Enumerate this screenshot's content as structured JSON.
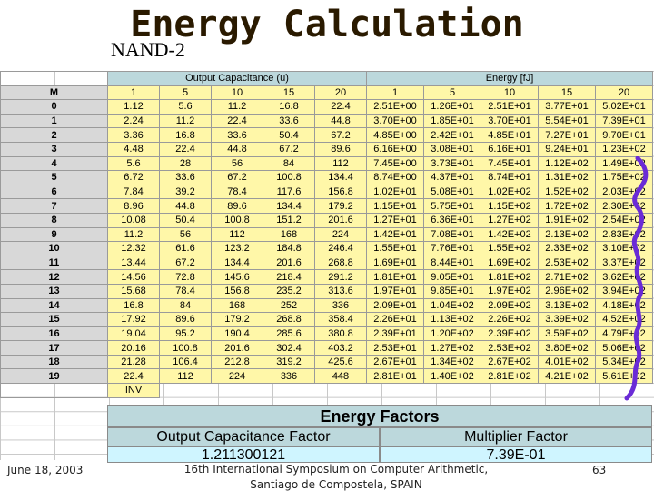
{
  "title": "Energy Calculation",
  "subtitle": "NAND-2",
  "table": {
    "cap_header": "Output Capacitance (u)",
    "energy_header": "Energy [fJ]",
    "m_label": "M",
    "cap_cols": [
      "1",
      "5",
      "10",
      "15",
      "20"
    ],
    "energy_cols": [
      "1",
      "5",
      "10",
      "15",
      "20"
    ],
    "inv_label": "INV",
    "rows": [
      {
        "m": "0",
        "cap": [
          "1.12",
          "5.6",
          "11.2",
          "16.8",
          "22.4"
        ],
        "energy": [
          "2.51E+00",
          "1.26E+01",
          "2.51E+01",
          "3.77E+01",
          "5.02E+01"
        ]
      },
      {
        "m": "1",
        "cap": [
          "2.24",
          "11.2",
          "22.4",
          "33.6",
          "44.8"
        ],
        "energy": [
          "3.70E+00",
          "1.85E+01",
          "3.70E+01",
          "5.54E+01",
          "7.39E+01"
        ]
      },
      {
        "m": "2",
        "cap": [
          "3.36",
          "16.8",
          "33.6",
          "50.4",
          "67.2"
        ],
        "energy": [
          "4.85E+00",
          "2.42E+01",
          "4.85E+01",
          "7.27E+01",
          "9.70E+01"
        ]
      },
      {
        "m": "3",
        "cap": [
          "4.48",
          "22.4",
          "44.8",
          "67.2",
          "89.6"
        ],
        "energy": [
          "6.16E+00",
          "3.08E+01",
          "6.16E+01",
          "9.24E+01",
          "1.23E+02"
        ]
      },
      {
        "m": "4",
        "cap": [
          "5.6",
          "28",
          "56",
          "84",
          "112"
        ],
        "energy": [
          "7.45E+00",
          "3.73E+01",
          "7.45E+01",
          "1.12E+02",
          "1.49E+02"
        ]
      },
      {
        "m": "5",
        "cap": [
          "6.72",
          "33.6",
          "67.2",
          "100.8",
          "134.4"
        ],
        "energy": [
          "8.74E+00",
          "4.37E+01",
          "8.74E+01",
          "1.31E+02",
          "1.75E+02"
        ]
      },
      {
        "m": "6",
        "cap": [
          "7.84",
          "39.2",
          "78.4",
          "117.6",
          "156.8"
        ],
        "energy": [
          "1.02E+01",
          "5.08E+01",
          "1.02E+02",
          "1.52E+02",
          "2.03E+02"
        ]
      },
      {
        "m": "7",
        "cap": [
          "8.96",
          "44.8",
          "89.6",
          "134.4",
          "179.2"
        ],
        "energy": [
          "1.15E+01",
          "5.75E+01",
          "1.15E+02",
          "1.72E+02",
          "2.30E+02"
        ]
      },
      {
        "m": "8",
        "cap": [
          "10.08",
          "50.4",
          "100.8",
          "151.2",
          "201.6"
        ],
        "energy": [
          "1.27E+01",
          "6.36E+01",
          "1.27E+02",
          "1.91E+02",
          "2.54E+02"
        ]
      },
      {
        "m": "9",
        "cap": [
          "11.2",
          "56",
          "112",
          "168",
          "224"
        ],
        "energy": [
          "1.42E+01",
          "7.08E+01",
          "1.42E+02",
          "2.13E+02",
          "2.83E+02"
        ]
      },
      {
        "m": "10",
        "cap": [
          "12.32",
          "61.6",
          "123.2",
          "184.8",
          "246.4"
        ],
        "energy": [
          "1.55E+01",
          "7.76E+01",
          "1.55E+02",
          "2.33E+02",
          "3.10E+02"
        ]
      },
      {
        "m": "11",
        "cap": [
          "13.44",
          "67.2",
          "134.4",
          "201.6",
          "268.8"
        ],
        "energy": [
          "1.69E+01",
          "8.44E+01",
          "1.69E+02",
          "2.53E+02",
          "3.37E+02"
        ]
      },
      {
        "m": "12",
        "cap": [
          "14.56",
          "72.8",
          "145.6",
          "218.4",
          "291.2"
        ],
        "energy": [
          "1.81E+01",
          "9.05E+01",
          "1.81E+02",
          "2.71E+02",
          "3.62E+02"
        ]
      },
      {
        "m": "13",
        "cap": [
          "15.68",
          "78.4",
          "156.8",
          "235.2",
          "313.6"
        ],
        "energy": [
          "1.97E+01",
          "9.85E+01",
          "1.97E+02",
          "2.96E+02",
          "3.94E+02"
        ]
      },
      {
        "m": "14",
        "cap": [
          "16.8",
          "84",
          "168",
          "252",
          "336"
        ],
        "energy": [
          "2.09E+01",
          "1.04E+02",
          "2.09E+02",
          "3.13E+02",
          "4.18E+02"
        ]
      },
      {
        "m": "15",
        "cap": [
          "17.92",
          "89.6",
          "179.2",
          "268.8",
          "358.4"
        ],
        "energy": [
          "2.26E+01",
          "1.13E+02",
          "2.26E+02",
          "3.39E+02",
          "4.52E+02"
        ]
      },
      {
        "m": "16",
        "cap": [
          "19.04",
          "95.2",
          "190.4",
          "285.6",
          "380.8"
        ],
        "energy": [
          "2.39E+01",
          "1.20E+02",
          "2.39E+02",
          "3.59E+02",
          "4.79E+02"
        ]
      },
      {
        "m": "17",
        "cap": [
          "20.16",
          "100.8",
          "201.6",
          "302.4",
          "403.2"
        ],
        "energy": [
          "2.53E+01",
          "1.27E+02",
          "2.53E+02",
          "3.80E+02",
          "5.06E+02"
        ]
      },
      {
        "m": "18",
        "cap": [
          "21.28",
          "106.4",
          "212.8",
          "319.2",
          "425.6"
        ],
        "energy": [
          "2.67E+01",
          "1.34E+02",
          "2.67E+02",
          "4.01E+02",
          "5.34E+02"
        ]
      },
      {
        "m": "19",
        "cap": [
          "22.4",
          "112",
          "224",
          "336",
          "448"
        ],
        "energy": [
          "2.81E+01",
          "1.40E+02",
          "2.81E+02",
          "4.21E+02",
          "5.61E+02"
        ]
      }
    ]
  },
  "energy_factors": {
    "title": "Energy Factors",
    "cap_factor_label": "Output Capacitance Factor",
    "mult_factor_label": "Multiplier Factor",
    "cap_factor_value": "1.211300121",
    "mult_factor_value": "7.39E-01"
  },
  "footer": {
    "date": "June 18, 2003",
    "conference_line1": "16th International Symposium on Computer Arithmetic,",
    "conference_line2": "Santiago de Compostela, SPAIN",
    "page": "63"
  },
  "colors": {
    "band": "#bcd8dc",
    "cell_fill": "#fff7a8",
    "value_fill": "#cff5ff",
    "m_column": "#d8d8d8",
    "brace": "#6a2bd6"
  }
}
